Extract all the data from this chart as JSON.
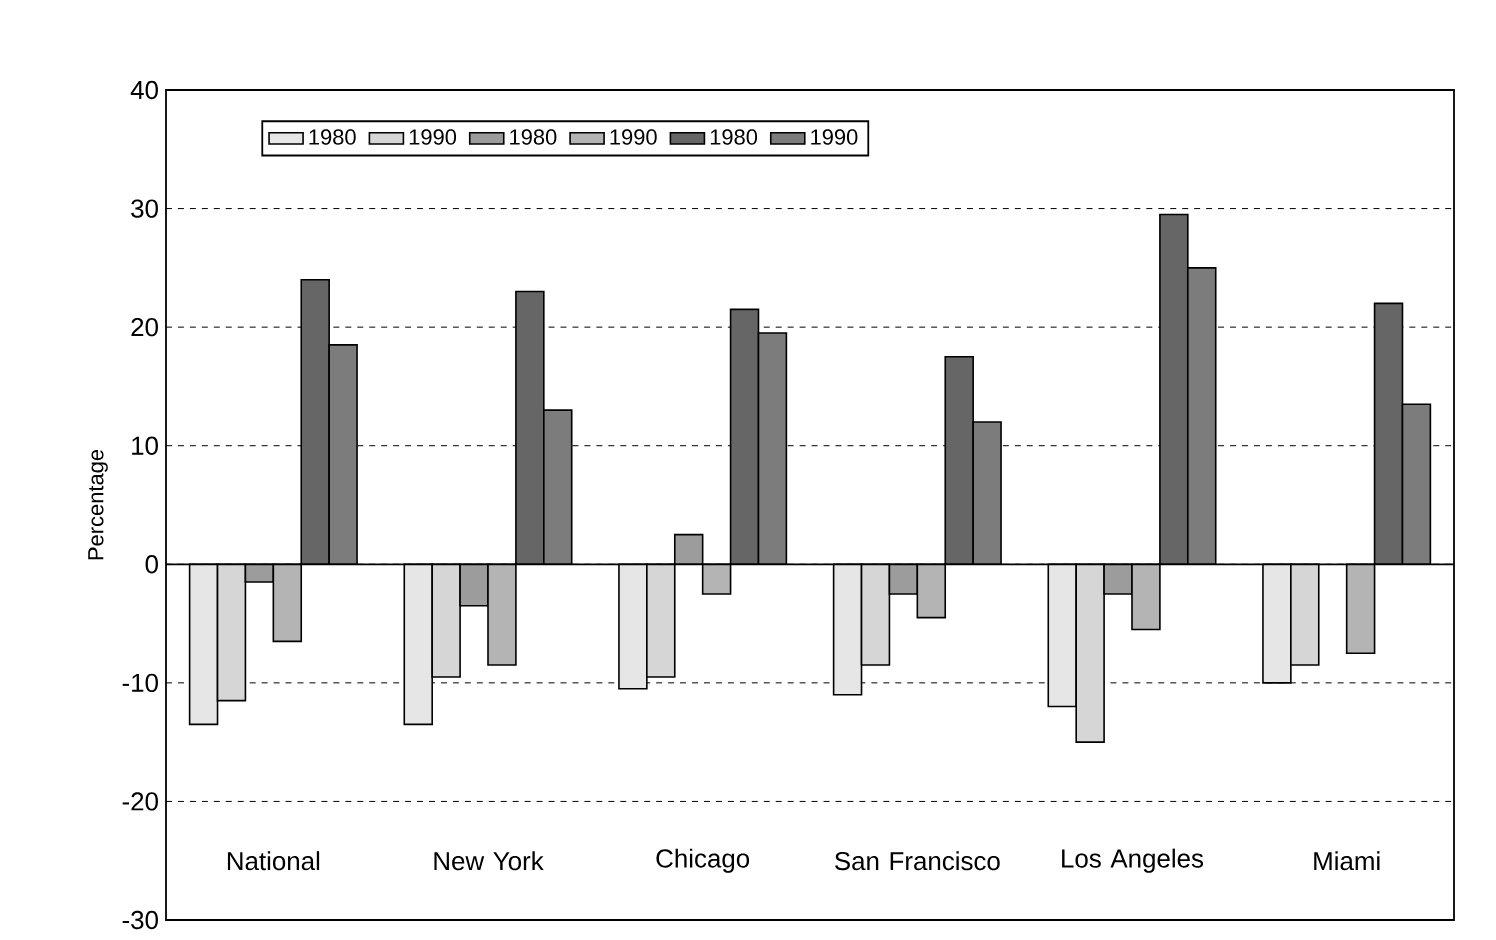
{
  "chart_data": {
    "type": "bar",
    "ylabel": "Percentage",
    "categories": [
      "National",
      "New York",
      "Chicago",
      "San Francisco",
      "Los Angeles",
      "Miami"
    ],
    "series": [
      {
        "name": "1980",
        "color": "#e6e6e6",
        "values": [
          -13.5,
          -13.5,
          -10.5,
          -11,
          -12,
          -10
        ]
      },
      {
        "name": "1990",
        "color": "#d6d6d6",
        "values": [
          -11.5,
          -9.5,
          -9.5,
          -8.5,
          -15,
          -8.5
        ]
      },
      {
        "name": "1980",
        "color": "#9c9c9c",
        "values": [
          -1.5,
          -3.5,
          2.5,
          -2.5,
          -2.5,
          null
        ]
      },
      {
        "name": "1990",
        "color": "#b4b4b4",
        "values": [
          -6.5,
          -8.5,
          -2.5,
          -4.5,
          -5.5,
          -7.5
        ]
      },
      {
        "name": "1980",
        "color": "#666666",
        "values": [
          24,
          23,
          21.5,
          17.5,
          29.5,
          22
        ]
      },
      {
        "name": "1990",
        "color": "#7c7c7c",
        "values": [
          18.5,
          13,
          19.5,
          12,
          25,
          13.5
        ]
      }
    ],
    "ylim": [
      -30,
      40
    ],
    "yticks": [
      -30,
      -20,
      -10,
      0,
      10,
      20,
      30,
      40
    ],
    "grid": "y",
    "legend": "top"
  }
}
